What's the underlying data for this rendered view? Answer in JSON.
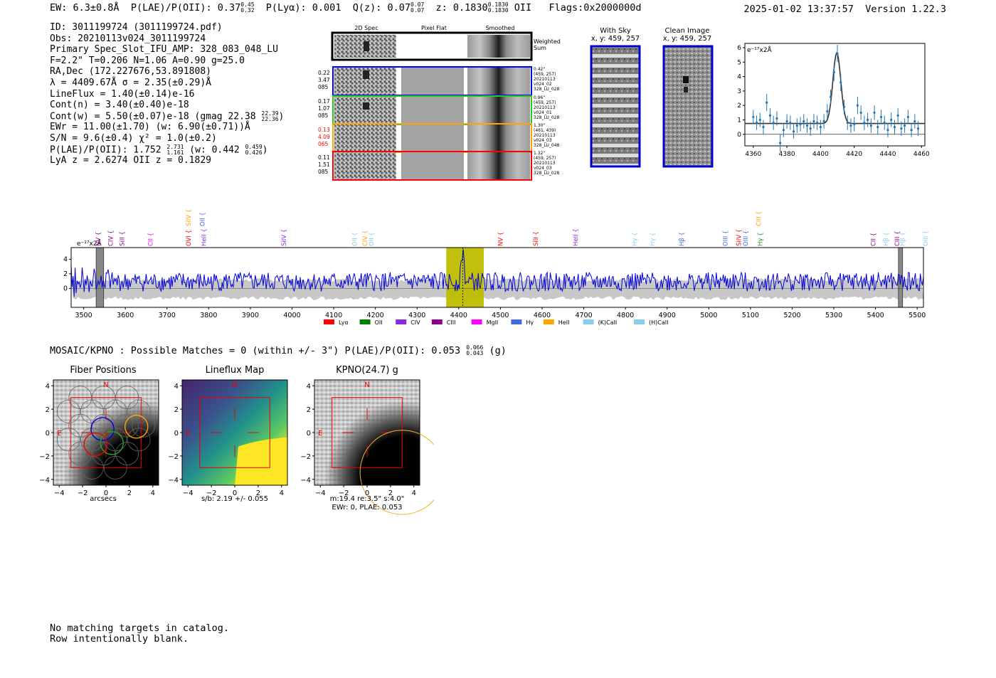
{
  "header": {
    "ew": "EW: 6.3±0.8Å",
    "plae_label": "P(LAE)/P(OII): 0.37",
    "plae_hi": "0.45",
    "plae_lo": "0.32",
    "plya": "P(Lyα): 0.001",
    "qz_label": "Q(z): 0.07",
    "qz_hi": "0.07",
    "qz_lo": "0.07",
    "z_label": "z: 0.1830",
    "z_hi": "0.1830",
    "z_lo": "0.1830",
    "z_line": "OII",
    "flags": "Flags:0x2000000d",
    "datetime": "2025-01-02 13:37:57",
    "version": "Version 1.22.3"
  },
  "info": {
    "id": "ID: 3011199724 (3011199724.pdf)",
    "obs": "Obs: 20210113v024_3011199724",
    "primary": "Primary Spec_Slot_IFU_AMP: 328_083_048_LU",
    "params": "F=2.2\"  T=0.206  N=1.06  A=0.90  g=25.0",
    "radec": "RA,Dec (172.227676,53.891808)",
    "lambda": "λ = 4409.67Å   σ = 2.35(±0.29)Å",
    "lineflux": "LineFlux = 1.40(±0.14)e-16",
    "contn": "Cont(n) = 3.40(±0.40)e-18",
    "contw": "Cont(w) = 5.50(±0.07)e-18 (gmag 22.38",
    "contw_hi": "22.39",
    "contw_lo": "22.36",
    "ewr": "EWr = 11.00(±1.70) (w: 6.90(±0.71))Å",
    "sn": "S/N = 9.6(±0.4)  χ² = 1.0(±0.2)",
    "plae2": "P(LAE)/P(OII): 1.752",
    "plae2_hi": "2.731",
    "plae2_lo": "1.161",
    "plae2_w": "(w: 0.442",
    "plae2_w_hi": "0.459",
    "plae2_w_lo": "0.426",
    "lyaz": "LyA z = 2.6274   OII z = 0.1829"
  },
  "cutouts": {
    "col_headers": [
      "2D Spec",
      "Pixel Flat",
      "Smoothed"
    ],
    "weighted_sum": "Weighted Sum",
    "rows": [
      {
        "color": "#0000ff",
        "left": [
          "0.22",
          "3.47",
          "085"
        ],
        "left_color": "#000000",
        "right": [
          "0.42\"",
          "(459, 257)",
          "20210113",
          "v024_02",
          "328_LU_028"
        ]
      },
      {
        "color": "#22cc22",
        "left": [
          "0.17",
          "1.07",
          "085"
        ],
        "left_color": "#000000",
        "right": [
          "0.96\"",
          "(459, 257)",
          "20210113",
          "v024_01",
          "328_LU_028"
        ]
      },
      {
        "color": "#ffa500",
        "left": [
          "0.13",
          "4.09",
          "065"
        ],
        "left_color": "#ff0000",
        "right": [
          "1.30\"",
          "(461, 439)",
          "20210113",
          "v024_03",
          "328_LU_048"
        ]
      },
      {
        "color": "#ff0000",
        "left": [
          "0.11",
          "1.51",
          "085"
        ],
        "left_color": "#000000",
        "right": [
          "1.32\"",
          "(459, 257)",
          "20210113",
          "v024_03",
          "328_LU_028"
        ]
      }
    ]
  },
  "sky": {
    "with_sky_title": "With Sky",
    "with_sky_coords": "x, y: 459, 257",
    "clean_title": "Clean Image",
    "clean_coords": "x, y: 459, 257"
  },
  "zoom_chart": {
    "ylabel": "e⁻¹⁷x2Å",
    "x_ticks": [
      4360,
      4380,
      4400,
      4420,
      4440,
      4460
    ],
    "y_ticks": [
      0,
      1,
      2,
      3,
      4,
      5,
      6
    ]
  },
  "full_spectrum": {
    "ylabel": "e⁻¹⁷x2Å",
    "x_ticks": [
      3500,
      3600,
      3700,
      3800,
      3900,
      4000,
      4100,
      4200,
      4300,
      4400,
      4500,
      4600,
      4700,
      4800,
      4900,
      5000,
      5100,
      5200,
      5300,
      5400,
      5500
    ],
    "y_ticks": [
      0,
      2,
      4
    ],
    "lines": [
      {
        "name": "NV",
        "wave": 3535,
        "color": "#8b008b",
        "row": 0
      },
      {
        "name": "CIV",
        "wave": 3565,
        "color": "#8b008b",
        "row": 0
      },
      {
        "name": "SiII",
        "wave": 3592,
        "color": "#8b008b",
        "row": 0
      },
      {
        "name": "CII",
        "wave": 3660,
        "color": "#ff00ff",
        "row": 0
      },
      {
        "name": "SiIV",
        "wave": 3752,
        "color": "#ffa500",
        "row": 1
      },
      {
        "name": "OVI",
        "wave": 3752,
        "color": "#ff0000",
        "row": 0
      },
      {
        "name": "OII",
        "wave": 3785,
        "color": "#4169e1",
        "row": 1
      },
      {
        "name": "HeII",
        "wave": 3788,
        "color": "#8a2be2",
        "row": 0
      },
      {
        "name": "SiIV",
        "wave": 3980,
        "color": "#8a2be2",
        "row": 0
      },
      {
        "name": "OII",
        "wave": 4150,
        "color": "#87ceeb",
        "row": 0
      },
      {
        "name": "CIV",
        "wave": 4175,
        "color": "#ffa500",
        "row": 0
      },
      {
        "name": "OII",
        "wave": 4190,
        "color": "#87ceeb",
        "row": 0
      },
      {
        "name": "NV",
        "wave": 4500,
        "color": "#ff0000",
        "row": 0
      },
      {
        "name": "SiII",
        "wave": 4585,
        "color": "#ff0000",
        "row": 0
      },
      {
        "name": "HeII",
        "wave": 4680,
        "color": "#8a2be2",
        "row": 0
      },
      {
        "name": "Hγ",
        "wave": 4822,
        "color": "#87ceeb",
        "row": 0
      },
      {
        "name": "Hγ",
        "wave": 4865,
        "color": "#87ceeb",
        "row": 0
      },
      {
        "name": "Hβ",
        "wave": 4935,
        "color": "#4169e1",
        "row": 0
      },
      {
        "name": "OIII",
        "wave": 5040,
        "color": "#4169e1",
        "row": 0
      },
      {
        "name": "SiIV",
        "wave": 5072,
        "color": "#ff0000",
        "row": 0
      },
      {
        "name": "OIII",
        "wave": 5088,
        "color": "#4169e1",
        "row": 0
      },
      {
        "name": "CIII",
        "wave": 5120,
        "color": "#ffa500",
        "row": 1
      },
      {
        "name": "Hγ",
        "wave": 5123,
        "color": "#228b22",
        "row": 0
      },
      {
        "name": "CII",
        "wave": 5395,
        "color": "#8b008b",
        "row": 0
      },
      {
        "name": "Hβ",
        "wave": 5425,
        "color": "#87ceeb",
        "row": 0
      },
      {
        "name": "CIII",
        "wave": 5452,
        "color": "#8b008b",
        "row": 0
      },
      {
        "name": "Hβ",
        "wave": 5465,
        "color": "#87ceeb",
        "row": 0
      },
      {
        "name": "OIII",
        "wave": 5520,
        "color": "#87ceeb",
        "row": 0
      }
    ],
    "legend": [
      {
        "name": "Lyα",
        "color": "#ff0000"
      },
      {
        "name": "OII",
        "color": "#008000"
      },
      {
        "name": "CIV",
        "color": "#8a2be2"
      },
      {
        "name": "CIII",
        "color": "#8b008b"
      },
      {
        "name": "MgII",
        "color": "#ff00ff"
      },
      {
        "name": "Hγ",
        "color": "#4169e1"
      },
      {
        "name": "HeII",
        "color": "#ffa500"
      },
      {
        "name": "(K)CaII",
        "color": "#87ceeb"
      },
      {
        "name": "(H)CaII",
        "color": "#87ceeb"
      }
    ]
  },
  "chart_data": [
    {
      "type": "scatter",
      "title": "",
      "xlabel": "",
      "ylabel": "e⁻¹⁷x2Å",
      "xlim": [
        4355,
        4462
      ],
      "ylim": [
        -0.8,
        6.3
      ],
      "series": [
        {
          "name": "data",
          "x": [
            4360,
            4362,
            4364,
            4366,
            4368,
            4370,
            4372,
            4374,
            4376,
            4378,
            4380,
            4382,
            4384,
            4386,
            4388,
            4390,
            4392,
            4394,
            4396,
            4398,
            4400,
            4402,
            4404,
            4406,
            4408,
            4410,
            4412,
            4414,
            4416,
            4418,
            4420,
            4422,
            4424,
            4426,
            4428,
            4430,
            4432,
            4434,
            4436,
            4438,
            4440,
            4442,
            4444,
            4446,
            4448,
            4450,
            4452,
            4454,
            4456,
            4458
          ],
          "y": [
            1.2,
            0.8,
            1.0,
            0.5,
            2.2,
            1.3,
            0.8,
            1.1,
            -0.6,
            0.3,
            0.9,
            0.8,
            0.2,
            0.6,
            0.7,
            0.9,
            0.6,
            0.4,
            0.9,
            0.8,
            0.5,
            0.9,
            1.6,
            2.6,
            4.3,
            5.6,
            3.6,
            1.9,
            0.8,
            0.6,
            0.7,
            2.0,
            1.5,
            0.8,
            1.0,
            0.6,
            1.5,
            0.5,
            1.2,
            0.8,
            0.3,
            1.0,
            0.5,
            1.3,
            0.4,
            0.6,
            1.2,
            0.3,
            0.9,
            0.4
          ],
          "err": [
            0.5,
            0.5,
            0.5,
            0.5,
            0.6,
            0.5,
            0.5,
            0.5,
            0.6,
            0.5,
            0.5,
            0.5,
            0.5,
            0.5,
            0.5,
            0.5,
            0.5,
            0.5,
            0.5,
            0.5,
            0.5,
            0.5,
            0.5,
            0.5,
            0.6,
            0.6,
            0.6,
            0.5,
            0.5,
            0.5,
            0.5,
            0.6,
            0.5,
            0.5,
            0.5,
            0.5,
            0.5,
            0.5,
            0.5,
            0.5,
            0.5,
            0.5,
            0.5,
            0.5,
            0.5,
            0.5,
            0.5,
            0.5,
            0.5,
            0.5
          ]
        },
        {
          "name": "fit",
          "model": "gaussian",
          "center": 4409.67,
          "sigma": 2.35,
          "amplitude": 4.9,
          "continuum": 0.75
        }
      ]
    },
    {
      "type": "line",
      "title": "",
      "xlabel": "",
      "ylabel": "e⁻¹⁷x2Å",
      "xlim": [
        3470,
        5515
      ],
      "ylim": [
        -2.6,
        5.6
      ],
      "highlight_band": [
        4370,
        4460
      ],
      "masked_regions": [
        [
          3530,
          3548
        ],
        [
          5455,
          5465
        ]
      ],
      "series": [
        {
          "name": "spectrum",
          "description": "noisy flux around 1 with emission peak 5.2 at 4409.67"
        }
      ]
    },
    {
      "type": "heatmap",
      "title": "Fiber Positions",
      "xlabel": "arcsecs",
      "xlim": [
        -4.5,
        4.5
      ],
      "ylim": [
        -4.5,
        4.5
      ],
      "x_ticks": [
        -4,
        -2,
        0,
        2,
        4
      ],
      "y_ticks": [
        -4,
        -2,
        0,
        2,
        4
      ]
    },
    {
      "type": "heatmap",
      "title": "Lineflux Map",
      "xlabel": "s/b: 2.19 +/- 0.055",
      "xlim": [
        -4.5,
        4.5
      ],
      "ylim": [
        -4.5,
        4.5
      ],
      "x_ticks": [
        -4,
        -2,
        0,
        2,
        4
      ],
      "y_ticks": [
        -4,
        -2,
        0,
        2,
        4
      ]
    },
    {
      "type": "heatmap",
      "title": "KPNO(24.7) g",
      "xlabel": "m:19.4  re:3.5\"  s:4.0\"",
      "xlabel2": "EWr: 0, PLAE: 0.053",
      "xlim": [
        -4.5,
        4.5
      ],
      "ylim": [
        -4.5,
        4.5
      ],
      "x_ticks": [
        -4,
        -2,
        0,
        2,
        4
      ],
      "y_ticks": [
        -4,
        -2,
        0,
        2,
        4
      ]
    }
  ],
  "matches": {
    "text": "MOSAIC/KPNO : Possible Matches = 0 (within +/- 3\")  P(LAE)/P(OII): 0.053",
    "hi": "0.066",
    "lo": "0.043",
    "band": "(g)"
  },
  "panels": {
    "fiber_title": "Fiber Positions",
    "fiber_xlabel": "arcsecs",
    "lineflux_title": "Lineflux Map",
    "lineflux_xlabel": "s/b: 2.19 +/- 0.055",
    "kpno_title": "KPNO(24.7) g",
    "kpno_xlabel": "m:19.4  re:3.5\"  s:4.0\"",
    "kpno_xlabel2": "EWr: 0, PLAE: 0.053",
    "north": "N",
    "east": "E"
  },
  "footer": {
    "line1": "No matching targets in catalog.",
    "line2": "Row intentionally blank."
  }
}
